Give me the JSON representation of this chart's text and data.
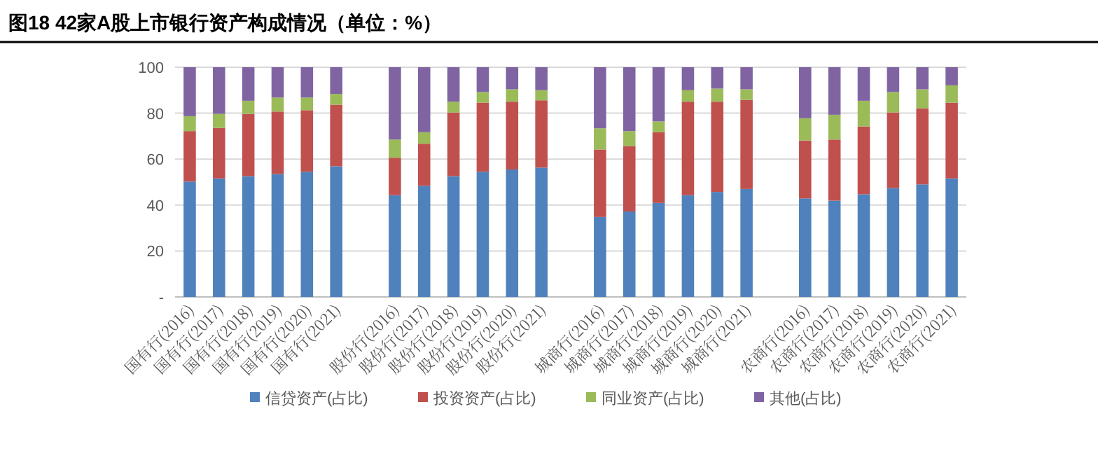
{
  "chart_data": {
    "type": "bar",
    "stacked": true,
    "title": "图18 42家A股上市银行资产构成情况（单位：%）",
    "categories": [
      "国有行(2016)",
      "国有行(2017)",
      "国有行(2018)",
      "国有行(2019)",
      "国有行(2020)",
      "国有行(2021)",
      null,
      "股份行(2016)",
      "股份行(2017)",
      "股份行(2018)",
      "股份行(2019)",
      "股份行(2020)",
      "股份行(2021)",
      null,
      "城商行(2016)",
      "城商行(2017)",
      "城商行(2018)",
      "城商行(2019)",
      "城商行(2020)",
      "城商行(2021)",
      null,
      "农商行(2016)",
      "农商行(2017)",
      "农商行(2018)",
      "农商行(2019)",
      "农商行(2020)",
      "农商行(2021)"
    ],
    "series": [
      {
        "name": "信贷资产(占比)",
        "color": "#4f81bd",
        "values": [
          50.2,
          51.6,
          52.6,
          53.5,
          54.5,
          56.9,
          null,
          44.3,
          48.4,
          52.6,
          54.5,
          55.5,
          56.3,
          null,
          34.8,
          37.2,
          40.9,
          44.3,
          45.7,
          47,
          null,
          42.9,
          41.9,
          44.7,
          47.4,
          49,
          51.6
        ]
      },
      {
        "name": "投资资产(占比)",
        "color": "#c0504d",
        "values": [
          22,
          22,
          27.1,
          27.2,
          26.8,
          26.8,
          null,
          16.3,
          18.3,
          27.7,
          30.1,
          29.5,
          29.3,
          null,
          29.4,
          28.5,
          30.8,
          40.7,
          39.3,
          38.8,
          null,
          25.2,
          26.6,
          29.5,
          32.9,
          33.1,
          33
        ]
      },
      {
        "name": "同业资产(占比)",
        "color": "#9bbb59",
        "values": [
          6.5,
          6.1,
          5.7,
          6.1,
          5.5,
          4.7,
          null,
          7.9,
          5,
          4.7,
          4.6,
          5.4,
          4.4,
          null,
          9.2,
          6.5,
          4.7,
          5,
          5.7,
          4.6,
          null,
          9.7,
          10.8,
          11.2,
          8.9,
          8.3,
          7.5
        ]
      },
      {
        "name": "其他(占比)",
        "color": "#8064a2",
        "values": [
          21.3,
          20.3,
          14.6,
          13.2,
          13.2,
          11.6,
          null,
          31.5,
          28.3,
          15,
          10.8,
          9.6,
          10,
          null,
          26.6,
          27.8,
          23.6,
          10,
          9.3,
          9.6,
          null,
          22.2,
          20.7,
          14.6,
          10.8,
          9.6,
          7.9
        ]
      }
    ],
    "ylim": [
      0,
      100
    ],
    "yticks": [
      {
        "value": 0,
        "label": "-"
      },
      20,
      40,
      60,
      80,
      100
    ],
    "grid": "y",
    "legend": "bottom"
  }
}
